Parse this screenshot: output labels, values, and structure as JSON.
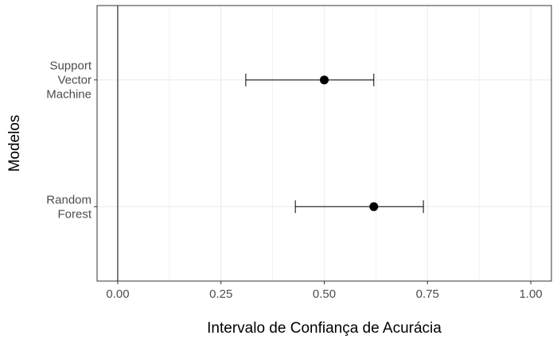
{
  "chart_data": {
    "type": "scatter",
    "xlabel": "Intervalo de Confiança de Acurácia",
    "ylabel": "Modelos",
    "xlim": [
      -0.05,
      1.05
    ],
    "x_ticks": [
      0.0,
      0.25,
      0.5,
      0.75,
      1.0
    ],
    "x_tick_labels": [
      "0.00",
      "0.25",
      "0.50",
      "0.75",
      "1.00"
    ],
    "grid": true,
    "reference_line_x": 0,
    "categories": [
      {
        "label_lines": [
          "Support",
          "Vector",
          "Machine"
        ],
        "estimate": 0.5,
        "lower": 0.31,
        "upper": 0.62
      },
      {
        "label_lines": [
          "Random",
          "Forest"
        ],
        "estimate": 0.62,
        "lower": 0.43,
        "upper": 0.74
      }
    ],
    "colors": {
      "point": "#000000",
      "grid": "#ebebeb",
      "panel_border": "#333333"
    }
  }
}
